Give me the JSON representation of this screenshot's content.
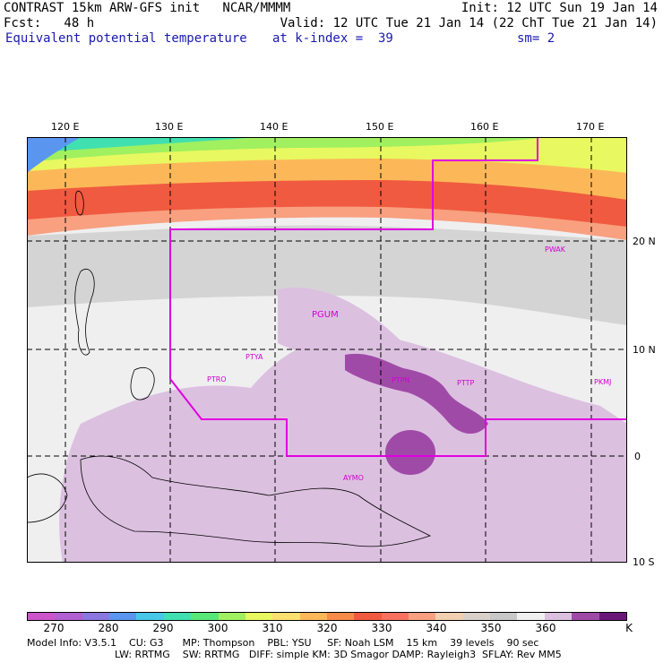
{
  "header": {
    "title_line": "CONTRAST 15km ARW-GFS init   NCAR/MMMM",
    "init_line": "Init: 12 UTC Sun 19 Jan 14",
    "fcst_line": "Fcst:   48 h",
    "valid_line": "Valid: 12 UTC Tue 21 Jan 14 (22 ChT Tue 21 Jan 14)",
    "field_name": "Equivalent potential temperature",
    "level_line": "at k-index =  39",
    "smooth_line": "sm= 2"
  },
  "axes": {
    "lon_labels": [
      "120 E",
      "130 E",
      "140 E",
      "150 E",
      "160 E",
      "170 E"
    ],
    "lat_labels": [
      "20 N",
      "10 N",
      "0",
      "10 S"
    ]
  },
  "stations": [
    "PWAK",
    "PGUM",
    "PTYA",
    "PTRO",
    "PTPN",
    "PTTP",
    "PKMJ",
    "AYMO"
  ],
  "colorbar": {
    "labels": [
      "270",
      "280",
      "290",
      "300",
      "310",
      "320",
      "330",
      "340",
      "350",
      "360"
    ],
    "unit": "K",
    "colors": [
      "#cc55cc",
      "#b060d0",
      "#8a78e0",
      "#5a96f0",
      "#48c8e8",
      "#40e0b0",
      "#58e878",
      "#a0f060",
      "#e8f860",
      "#fce070",
      "#fcb858",
      "#f88a4a",
      "#f05a40",
      "#f87060",
      "#f8a080",
      "#f0d0b0",
      "#d8d0c8",
      "#c8c8c8",
      "#f0f0f0",
      "#dcc0e0",
      "#a04aa8",
      "#6a1878"
    ]
  },
  "footer": {
    "line1": "Model Info: V3.5.1    CU: G3      MP: Thompson    PBL: YSU     SF: Noah LSM    15 km    39 levels    90 sec",
    "line2": "LW: RRTMG    SW: RRTMG   DIFF: simple KM: 3D Smagor DAMP: Rayleigh3  SFLAY: Rev MM5"
  }
}
